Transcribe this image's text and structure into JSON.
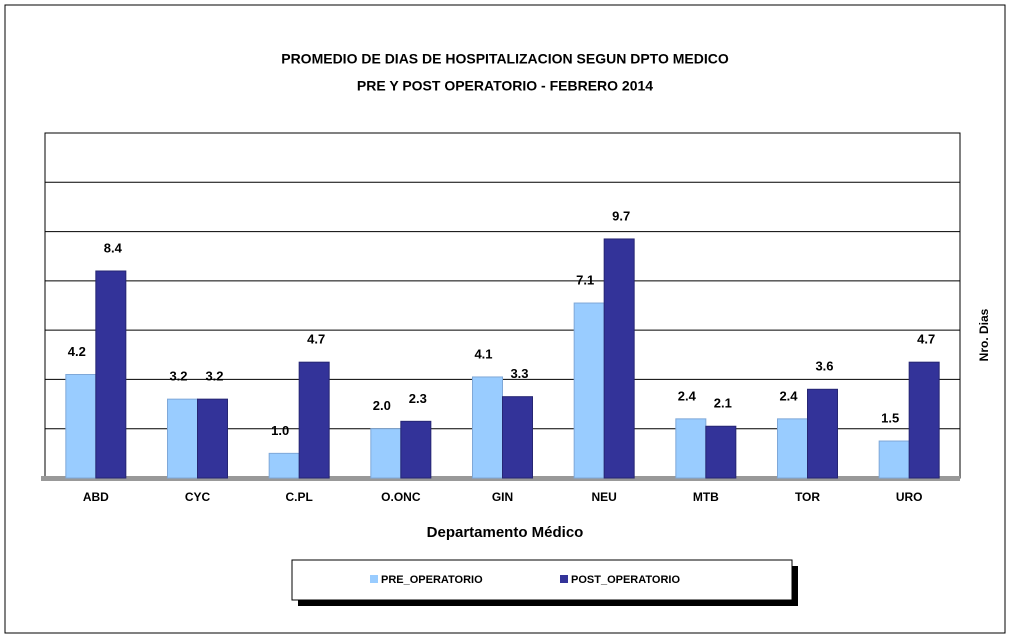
{
  "chart_data": {
    "type": "bar",
    "title": "PROMEDIO DE DIAS DE HOSPITALIZACION SEGUN DPTO MEDICO",
    "subtitle": "PRE Y POST OPERATORIO  -  FEBRERO 2014",
    "x_label": "Departamento Médico",
    "y_label": "Nro. Dias",
    "categories": [
      "ABD",
      "CYC",
      "C.PL",
      "O.ONC",
      "GIN",
      "NEU",
      "MTB",
      "TOR",
      "URO"
    ],
    "series": [
      {
        "name": "PRE_OPERATORIO",
        "color": "#99ccff",
        "values": [
          4.2,
          3.2,
          1.0,
          2.0,
          4.1,
          7.1,
          2.4,
          2.4,
          1.5
        ],
        "value_labels": [
          "4.2",
          "3.2",
          "1.0",
          "2.0",
          "4.1",
          "7.1",
          "2.4",
          "2.4",
          "1.5"
        ]
      },
      {
        "name": "POST_OPERATORIO",
        "color": "#333399",
        "values": [
          8.4,
          3.2,
          4.7,
          2.3,
          3.3,
          9.7,
          2.1,
          3.6,
          4.7
        ],
        "value_labels": [
          "8.4",
          "3.2",
          "4.7",
          "2.3",
          "3.3",
          "9.7",
          "2.1",
          "3.6",
          "4.7"
        ]
      }
    ],
    "ylim": [
      0,
      14
    ],
    "yticks": [
      0,
      2,
      4,
      6,
      8,
      10,
      12,
      14
    ],
    "grid": true,
    "legend": "bottom"
  }
}
